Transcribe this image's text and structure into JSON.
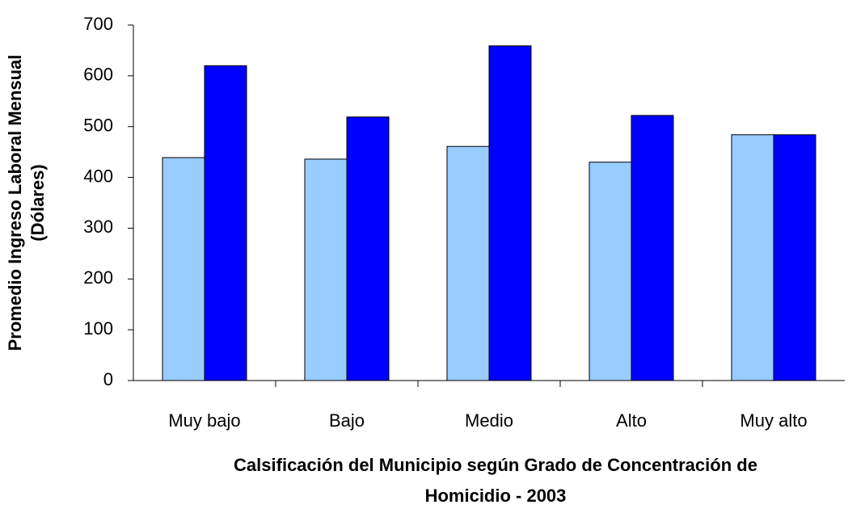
{
  "chart_data": {
    "type": "bar",
    "categories": [
      "Muy bajo",
      "Bajo",
      "Medio",
      "Alto",
      "Muy alto"
    ],
    "series": [
      {
        "color": "#99ccff",
        "values": [
          439,
          436,
          461,
          430,
          484
        ]
      },
      {
        "color": "#0000ff",
        "values": [
          620,
          519,
          659,
          522,
          484
        ]
      }
    ],
    "ylim": [
      0,
      700
    ],
    "yticks": [
      0,
      100,
      200,
      300,
      400,
      500,
      600,
      700
    ],
    "grid": false,
    "ylabel": [
      "Promedio Ingreso Laboral Mensual",
      "(Dólares)"
    ],
    "xlabel": [
      "Calsificación del Municipio según Grado de Concentración de",
      "Homicidio - 2003"
    ]
  }
}
